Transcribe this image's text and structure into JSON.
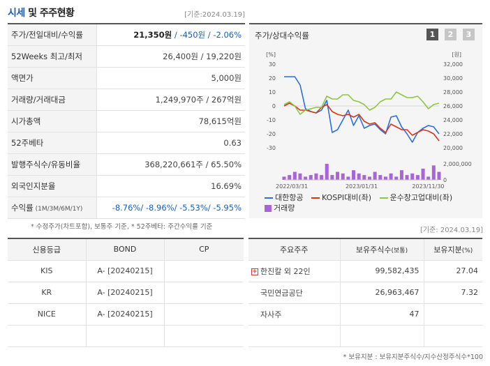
{
  "header": {
    "title_a": "시세",
    "title_b": " 및 주주현황",
    "date": "[기준:2024.03.19]"
  },
  "price_rows": [
    {
      "label": "주가/전일대비/수익률",
      "value_a": "21,350원",
      "value_b": " / -450원 / -2.06%"
    },
    {
      "label": "52Weeks 최고/최저",
      "value": "26,400원 / 19,220원"
    },
    {
      "label": "액면가",
      "value": "5,000원"
    },
    {
      "label": "거래량/거래대금",
      "value": "1,249,970주 / 267억원"
    },
    {
      "label": "시가총액",
      "value": "78,615억원"
    },
    {
      "label": "52주베타",
      "value": "0.63"
    },
    {
      "label": "발행주식수/유동비율",
      "value": "368,220,661주 / 65.50%"
    },
    {
      "label": "외국인지분율",
      "value": "16.69%"
    },
    {
      "label": "수익률",
      "label_small": " (1M/3M/6M/1Y)",
      "value": "-8.76%/ -8.96%/ -5.53%/ -5.95%"
    }
  ],
  "price_note": "* 수정주가(차트포함), 보통주 기준, * 52주베타: 주간수익률 기준",
  "chart": {
    "title": "주가/상대수익률",
    "pages": [
      "1",
      "2",
      "3"
    ],
    "left_unit": "[%]",
    "right_unit": "[원]",
    "legend": [
      "대한항공",
      "KOSPI대비(좌)",
      "운수창고업대비(좌)",
      "거래량"
    ],
    "colors": {
      "stock": "#2a6fdb",
      "kospi": "#d9341a",
      "sector": "#8cc63f",
      "volume": "#a864d8"
    },
    "date": "[기준: 2024.03.19]"
  },
  "chart_data": {
    "type": "line",
    "x_ticks": [
      "2022/03/31",
      "2023/01/31",
      "2023/11/30"
    ],
    "left_ticks": [
      "30",
      "20",
      "10",
      "0",
      "-10",
      "-20",
      "-30"
    ],
    "right_ticks": [
      "32,000",
      "30,000",
      "28,000",
      "26,000",
      "24,000",
      "22,000",
      "20,000"
    ],
    "volume_ticks": [
      "2,000,000",
      "0"
    ],
    "ylim_left": [
      -30,
      30
    ],
    "ylim_right": [
      20000,
      32000
    ],
    "series": [
      {
        "name": "대한항공",
        "axis": "left",
        "values": [
          21,
          21,
          21,
          15,
          -2,
          -4,
          -5,
          -3,
          4,
          -19,
          -17,
          -10,
          -3,
          -14,
          -7,
          -16,
          -14,
          -13,
          -17,
          -20,
          -8,
          -7,
          -15,
          -20,
          -26,
          -19,
          -16,
          -14,
          -15,
          -20
        ]
      },
      {
        "name": "KOSPI대비(좌)",
        "axis": "left",
        "values": [
          0,
          2,
          0,
          -3,
          -3,
          -4,
          -5,
          -1,
          1,
          -4,
          -6,
          -7,
          -6,
          -8,
          -6,
          -11,
          -13,
          -12,
          -16,
          -19,
          -13,
          -15,
          -17,
          -17,
          -21,
          -19,
          -17,
          -18,
          -20,
          -25
        ]
      },
      {
        "name": "운수창고업대비(좌)",
        "axis": "left",
        "values": [
          1,
          3,
          0,
          -6,
          -3,
          -2,
          -1,
          -1,
          7,
          5,
          5,
          8,
          8,
          4,
          3,
          1,
          -3,
          -1,
          3,
          5,
          5,
          10,
          8,
          6,
          6,
          7,
          3,
          -2,
          1,
          2
        ]
      }
    ],
    "volume": [
      2,
      3,
      5,
      4,
      2,
      3,
      4,
      3,
      10,
      3,
      5,
      4,
      2,
      6,
      4,
      3,
      2,
      5,
      3,
      2,
      4,
      2,
      6,
      3,
      4,
      3,
      7,
      2,
      9,
      5
    ]
  },
  "credit": {
    "headers": [
      "신용등급",
      "BOND",
      "CP"
    ],
    "rows": [
      [
        "KIS",
        "A-  [20240215]",
        ""
      ],
      [
        "KR",
        "A-  [20240215]",
        ""
      ],
      [
        "NICE",
        "A-  [20240215]",
        ""
      ],
      [
        "",
        "",
        ""
      ]
    ]
  },
  "holders": {
    "headers": [
      "주요주주",
      "보유주식수",
      "(보통)",
      "보유지분",
      "(%)"
    ],
    "rows": [
      {
        "name": "한진칼 외 22인",
        "shares": "99,582,435",
        "pct": "27.04",
        "expand": true
      },
      {
        "name": "국민연금공단",
        "shares": "26,963,467",
        "pct": "7.32",
        "expand": false
      },
      {
        "name": "자사주",
        "shares": "47",
        "pct": "",
        "expand": false
      },
      {
        "name": "",
        "shares": "",
        "pct": "",
        "expand": false
      }
    ],
    "plus_glyph": "+",
    "note": "* 보유지분 : 보유지분주식수/지수산정주식수*100"
  }
}
